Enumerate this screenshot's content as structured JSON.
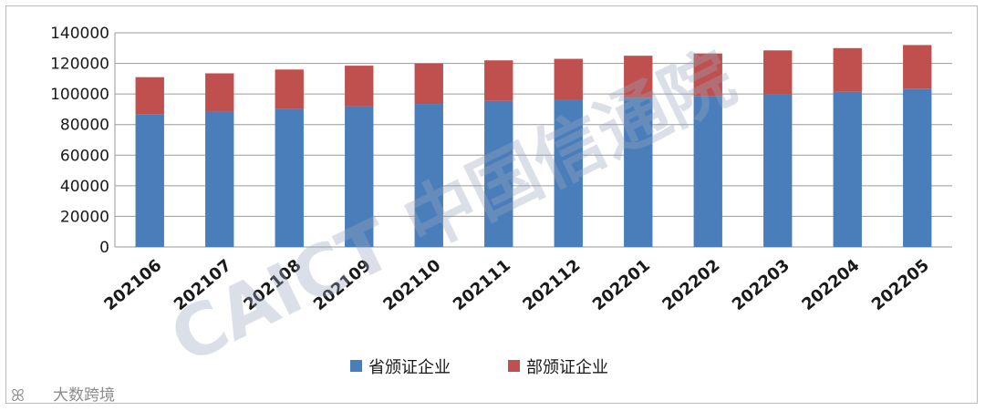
{
  "chart_data": {
    "type": "bar",
    "stacked": true,
    "categories": [
      "202106",
      "202107",
      "202108",
      "202109",
      "202110",
      "202111",
      "202112",
      "202201",
      "202202",
      "202203",
      "202204",
      "202205"
    ],
    "series": [
      {
        "name": "省颁证企业",
        "color": "#4a7ebb",
        "values": [
          86500,
          88500,
          90500,
          92000,
          93500,
          95500,
          96500,
          97500,
          98500,
          100000,
          101500,
          103500
        ]
      },
      {
        "name": "部颁证企业",
        "color": "#c0504d",
        "values": [
          24500,
          25000,
          25500,
          26500,
          26500,
          26500,
          26500,
          27500,
          28000,
          28500,
          28500,
          28500
        ]
      }
    ],
    "ylim": [
      0,
      140000
    ],
    "yticks": [
      0,
      20000,
      40000,
      60000,
      80000,
      100000,
      120000,
      140000
    ],
    "grid": true,
    "legend_position": "bottom"
  },
  "watermark": {
    "main_text": "CAICT 中国信通院",
    "source_text": "大数跨境"
  }
}
